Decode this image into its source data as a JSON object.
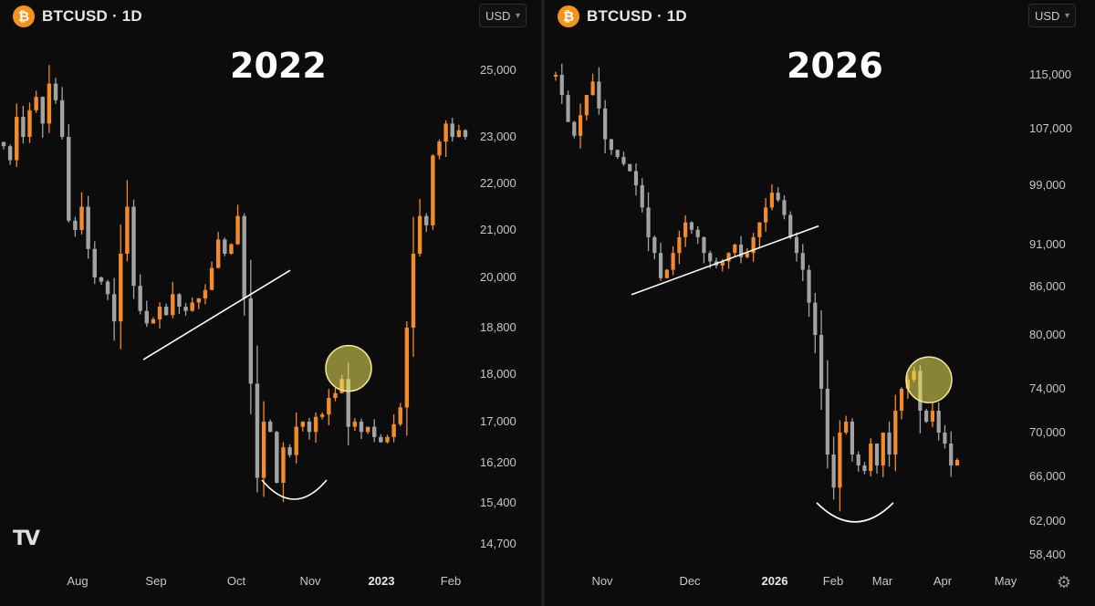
{
  "charts": [
    {
      "symbol": "BTCUSD · 1D",
      "currency": "USD",
      "year_label": "2022",
      "icon": "bitcoin-icon"
    },
    {
      "symbol": "BTCUSD · 1D",
      "currency": "USD",
      "year_label": "2026",
      "icon": "bitcoin-icon"
    }
  ],
  "chart_data": [
    {
      "type": "candlestick",
      "title": "2022",
      "y_ticks": [
        25000,
        23000,
        22000,
        21000,
        20000,
        18800,
        18000,
        17000,
        16200,
        15400,
        14700
      ],
      "y_tick_labels": [
        "25,000",
        "23,000",
        "22,000",
        "21,000",
        "20,000",
        "18,800",
        "18,000",
        "17,000",
        "16,200",
        "15,400",
        "14,700"
      ],
      "x_tick_labels": [
        "Aug",
        "Sep",
        "Oct",
        "Nov",
        "2023",
        "Feb"
      ],
      "close_path": [
        22800,
        22500,
        23600,
        23000,
        23800,
        24200,
        23400,
        24600,
        24100,
        23000,
        21200,
        21000,
        21500,
        20600,
        20000,
        19900,
        19600,
        18950,
        20500,
        21500,
        19800,
        19200,
        18900,
        19000,
        19300,
        19100,
        19600,
        19300,
        19200,
        19400,
        19500,
        19700,
        20200,
        20800,
        20500,
        20700,
        21300,
        19500,
        17800,
        15900,
        17000,
        16800,
        15800,
        16500,
        16350,
        16900,
        17000,
        16800,
        17100,
        17150,
        17500,
        17600,
        17900,
        16900,
        17000,
        16800,
        16900,
        16700,
        16600,
        16700,
        16950,
        17300,
        18800,
        20500,
        21300,
        21100,
        22600,
        22900,
        23400,
        23000,
        23200,
        23000
      ],
      "trendline": {
        "from": 18250,
        "to": 20150
      },
      "highlight_circle": {
        "value": 18100
      },
      "bottom_arc": {
        "value": 15600
      },
      "colors": {
        "up": "#f28b2c",
        "down": "#a3a3a3",
        "line": "#ffffff"
      }
    },
    {
      "type": "candlestick",
      "title": "2026",
      "y_ticks": [
        115000,
        107000,
        99000,
        91000,
        86000,
        80000,
        74000,
        70000,
        66000,
        62000,
        58400
      ],
      "y_tick_labels": [
        "115,000",
        "107,000",
        "99,000",
        "91,000",
        "86,000",
        "80,000",
        "74,000",
        "70,000",
        "66,000",
        "62,000",
        "58,400"
      ],
      "x_tick_labels": [
        "Nov",
        "Dec",
        "2026",
        "Feb",
        "Mar",
        "Apr",
        "May"
      ],
      "close_path": [
        115000,
        112000,
        108000,
        106000,
        109000,
        112000,
        114000,
        110000,
        105500,
        104000,
        103000,
        102000,
        101000,
        99000,
        96000,
        92000,
        90000,
        87000,
        88000,
        90000,
        92000,
        94000,
        93000,
        92000,
        90000,
        89000,
        88500,
        89000,
        90000,
        91000,
        89500,
        90000,
        92000,
        94000,
        96000,
        98000,
        97000,
        95000,
        92000,
        90000,
        88000,
        84000,
        80000,
        74000,
        68000,
        65000,
        70000,
        71000,
        68000,
        67000,
        66500,
        69000,
        67000,
        70000,
        68000,
        72000,
        74000,
        75000,
        76000,
        72000,
        71000,
        72000,
        70000,
        69000,
        67000,
        67500
      ],
      "trendline": {
        "from": 85000,
        "to": 93500
      },
      "highlight_circle": {
        "value": 75000
      },
      "bottom_arc": {
        "value": 62500
      },
      "colors": {
        "up": "#f28b2c",
        "down": "#a3a3a3",
        "line": "#ffffff"
      }
    }
  ]
}
